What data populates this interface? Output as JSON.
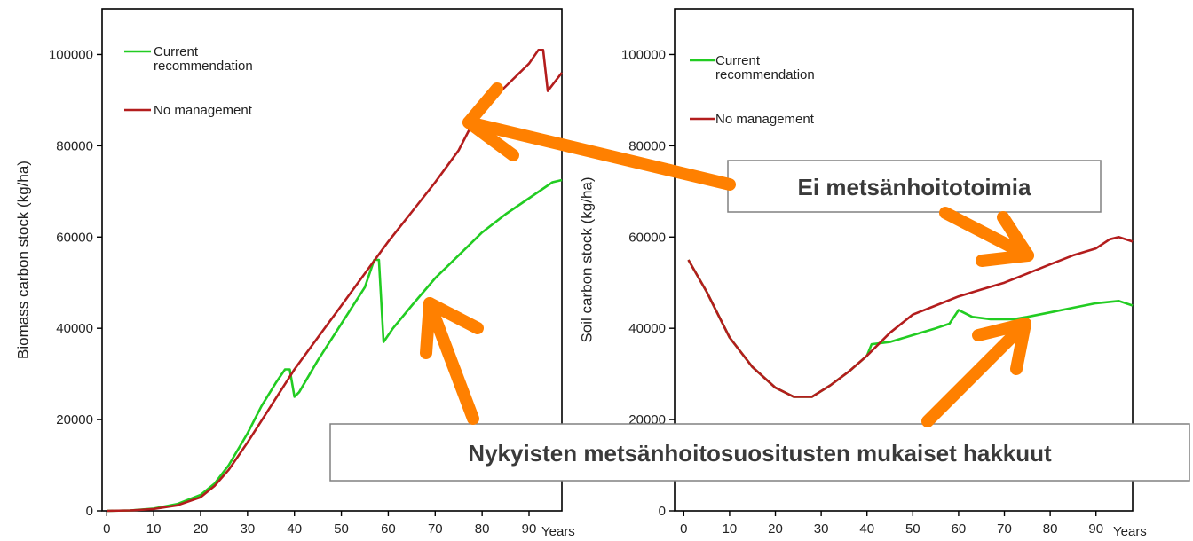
{
  "chart_data": [
    {
      "type": "line",
      "title": "",
      "ylabel": "Biomass carbon stock (kg/ha)",
      "xlabel": "",
      "x_unit_label": "Years",
      "xlim": [
        -1,
        97
      ],
      "ylim": [
        0,
        110000
      ],
      "xticks": [
        0,
        10,
        20,
        30,
        40,
        50,
        60,
        70,
        80,
        90
      ],
      "yticks": [
        0,
        20000,
        40000,
        60000,
        80000,
        100000
      ],
      "legend_position": "top-left",
      "series": [
        {
          "name": "Current recommendation",
          "color": "#22cc22",
          "points": [
            [
              0,
              0
            ],
            [
              5,
              100
            ],
            [
              10,
              500
            ],
            [
              15,
              1500
            ],
            [
              20,
              3500
            ],
            [
              23,
              6000
            ],
            [
              26,
              10000
            ],
            [
              30,
              17000
            ],
            [
              33,
              23000
            ],
            [
              36,
              28000
            ],
            [
              38,
              31000
            ],
            [
              39,
              31000
            ],
            [
              40,
              25000
            ],
            [
              41,
              26000
            ],
            [
              45,
              33000
            ],
            [
              50,
              41000
            ],
            [
              55,
              49000
            ],
            [
              57,
              55000
            ],
            [
              58,
              55000
            ],
            [
              59,
              37000
            ],
            [
              61,
              40000
            ],
            [
              65,
              45000
            ],
            [
              70,
              51000
            ],
            [
              75,
              56000
            ],
            [
              80,
              61000
            ],
            [
              85,
              65000
            ],
            [
              90,
              68500
            ],
            [
              95,
              72000
            ],
            [
              97,
              72500
            ]
          ]
        },
        {
          "name": "No management",
          "color": "#b31d1d",
          "points": [
            [
              0,
              0
            ],
            [
              5,
              100
            ],
            [
              10,
              400
            ],
            [
              15,
              1200
            ],
            [
              20,
              3000
            ],
            [
              23,
              5500
            ],
            [
              26,
              9000
            ],
            [
              30,
              15000
            ],
            [
              35,
              23000
            ],
            [
              40,
              31000
            ],
            [
              45,
              38000
            ],
            [
              50,
              45000
            ],
            [
              55,
              52000
            ],
            [
              60,
              59000
            ],
            [
              65,
              65500
            ],
            [
              70,
              72000
            ],
            [
              75,
              79000
            ],
            [
              78,
              85000
            ],
            [
              80,
              88000
            ],
            [
              85,
              93000
            ],
            [
              90,
              98000
            ],
            [
              92,
              101000
            ],
            [
              93,
              101000
            ],
            [
              94,
              92000
            ],
            [
              97,
              96000
            ]
          ]
        }
      ]
    },
    {
      "type": "line",
      "title": "",
      "ylabel": "Soil carbon stock (kg/ha)",
      "xlabel": "",
      "x_unit_label": "Years",
      "xlim": [
        -2,
        98
      ],
      "ylim": [
        0,
        110000
      ],
      "xticks": [
        0,
        10,
        20,
        30,
        40,
        50,
        60,
        70,
        80,
        90
      ],
      "yticks": [
        0,
        20000,
        40000,
        60000,
        80000,
        100000
      ],
      "legend_position": "top-left",
      "series": [
        {
          "name": "Current recommendation",
          "color": "#22cc22",
          "points": [
            [
              1,
              55000
            ],
            [
              5,
              48000
            ],
            [
              10,
              38000
            ],
            [
              15,
              31500
            ],
            [
              20,
              27000
            ],
            [
              24,
              25000
            ],
            [
              28,
              25000
            ],
            [
              32,
              27500
            ],
            [
              36,
              30500
            ],
            [
              40,
              34000
            ],
            [
              41,
              36500
            ],
            [
              45,
              37000
            ],
            [
              50,
              38500
            ],
            [
              55,
              40000
            ],
            [
              58,
              41000
            ],
            [
              60,
              44000
            ],
            [
              63,
              42500
            ],
            [
              67,
              42000
            ],
            [
              72,
              42000
            ],
            [
              75,
              42500
            ],
            [
              80,
              43500
            ],
            [
              85,
              44500
            ],
            [
              90,
              45500
            ],
            [
              95,
              46000
            ],
            [
              98,
              45000
            ]
          ]
        },
        {
          "name": "No management",
          "color": "#b31d1d",
          "points": [
            [
              1,
              55000
            ],
            [
              5,
              48000
            ],
            [
              10,
              38000
            ],
            [
              15,
              31500
            ],
            [
              20,
              27000
            ],
            [
              24,
              25000
            ],
            [
              28,
              25000
            ],
            [
              32,
              27500
            ],
            [
              36,
              30500
            ],
            [
              40,
              34000
            ],
            [
              45,
              39000
            ],
            [
              50,
              43000
            ],
            [
              55,
              45000
            ],
            [
              60,
              47000
            ],
            [
              65,
              48500
            ],
            [
              70,
              50000
            ],
            [
              75,
              52000
            ],
            [
              80,
              54000
            ],
            [
              85,
              56000
            ],
            [
              90,
              57500
            ],
            [
              93,
              59500
            ],
            [
              95,
              60000
            ],
            [
              98,
              59000
            ]
          ]
        }
      ]
    }
  ],
  "callouts": {
    "no_management": "Ei metsänhoitotoimia",
    "current_recommendation": "Nykyisten metsänhoitosuositusten mukaiset hakkuut"
  },
  "colors": {
    "arrow": "#ff8000",
    "axis": "#000000",
    "callout_text": "#3a3a3a"
  }
}
